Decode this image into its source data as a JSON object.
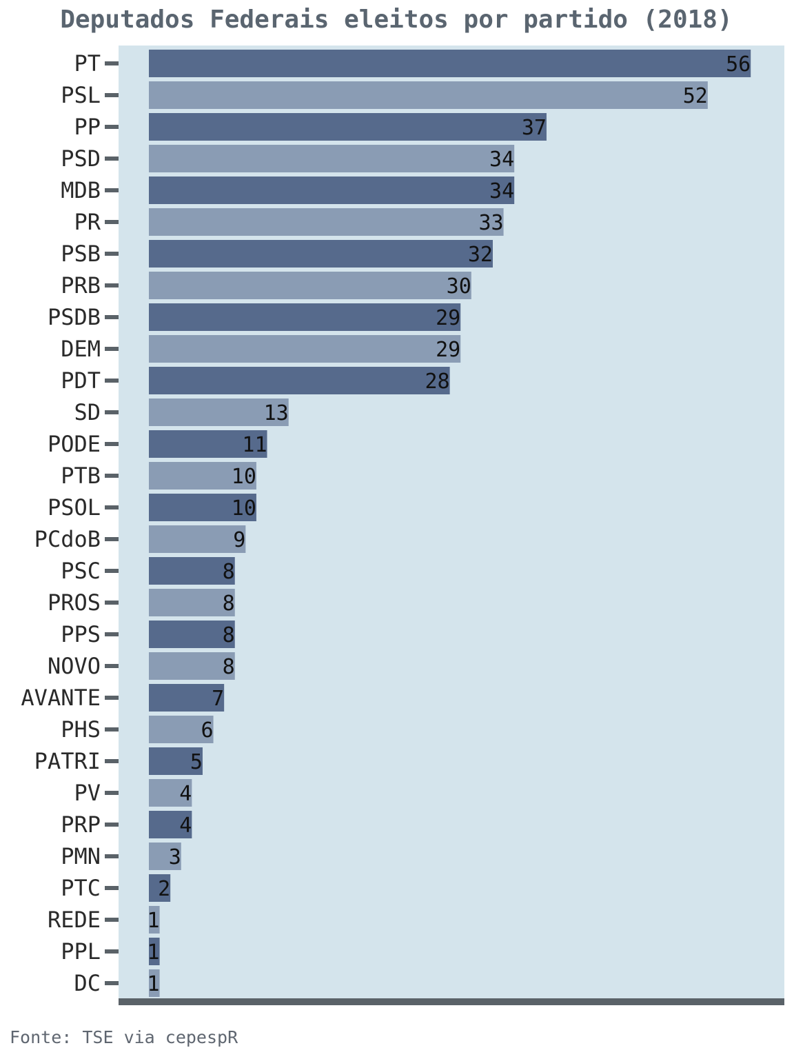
{
  "chart_data": {
    "type": "bar",
    "orientation": "horizontal",
    "title": "Deputados Federais eleitos por partido (2018)",
    "source": "Fonte: TSE via cepespR",
    "xlabel": "",
    "ylabel": "",
    "xlim": [
      0,
      59
    ],
    "grid": false,
    "legend": "none",
    "categories": [
      "PT",
      "PSL",
      "PP",
      "PSD",
      "MDB",
      "PR",
      "PSB",
      "PRB",
      "PSDB",
      "DEM",
      "PDT",
      "SD",
      "PODE",
      "PTB",
      "PSOL",
      "PCdoB",
      "PSC",
      "PROS",
      "PPS",
      "NOVO",
      "AVANTE",
      "PHS",
      "PATRI",
      "PV",
      "PRP",
      "PMN",
      "PTC",
      "REDE",
      "PPL",
      "DC"
    ],
    "values": [
      56,
      52,
      37,
      34,
      34,
      33,
      32,
      30,
      29,
      29,
      28,
      13,
      11,
      10,
      10,
      9,
      8,
      8,
      8,
      8,
      7,
      6,
      5,
      4,
      4,
      3,
      2,
      1,
      1,
      1
    ],
    "colors": {
      "bar_dark": "#566a8c",
      "bar_light": "#8a9cb4",
      "panel_background": "#d4e4ec",
      "axis_line": "#5a6268",
      "title": "#5a6570"
    }
  }
}
